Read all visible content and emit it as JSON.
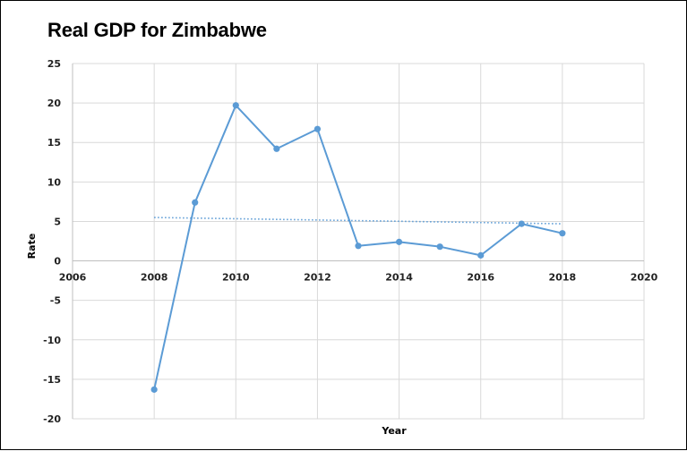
{
  "chart_data": {
    "type": "scatter",
    "title": "Real GDP for Zimbabwe",
    "xlabel": "Year",
    "ylabel": "Rate",
    "xlim": [
      2006,
      2020
    ],
    "ylim": [
      -20,
      25
    ],
    "x_ticks": [
      2006,
      2008,
      2010,
      2012,
      2014,
      2016,
      2018,
      2020
    ],
    "y_ticks": [
      25,
      20,
      15,
      10,
      5,
      0,
      -5,
      -10,
      -15,
      -20
    ],
    "grid": true,
    "legend": "none",
    "series": [
      {
        "x": [
          2008,
          2009,
          2010,
          2011,
          2012,
          2013,
          2014,
          2015,
          2016,
          2017,
          2018
        ],
        "y": [
          -16.3,
          7.4,
          19.7,
          14.2,
          16.7,
          1.9,
          2.4,
          1.8,
          0.7,
          4.7,
          3.5
        ],
        "color": "#5b9bd5",
        "style": "line-with-markers"
      }
    ],
    "trendline": {
      "type": "linear",
      "x": [
        2008,
        2018
      ],
      "y": [
        5.5,
        4.7
      ],
      "color": "#5b9bd5",
      "style": "dotted"
    },
    "colors": {
      "series": "#5b9bd5",
      "grid": "#d9d9d9",
      "axis": "#bfbfbf"
    }
  }
}
